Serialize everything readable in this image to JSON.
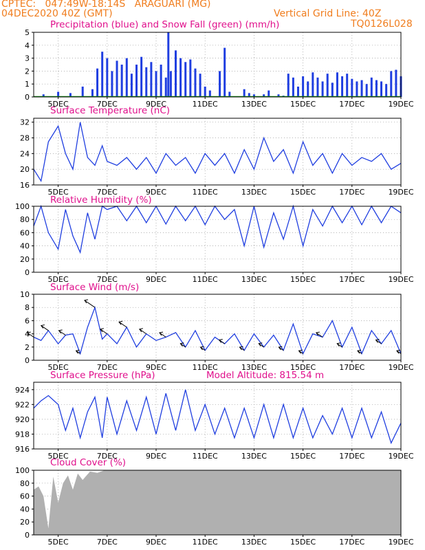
{
  "header": {
    "line1_left": "CPTEC:   047:49W-18:14S   ARAGUARI (MG)",
    "line2_left": "04DEC2020 40Z (GMT)",
    "line2_right": "Vertical Grid Line: 40Z",
    "line3_right": "TQ0126L028"
  },
  "colors": {
    "header": "#f07d1e",
    "title": "#e0108c",
    "series": "#1f3ee0",
    "snow": "#1aa01a",
    "cloud": "#b0b0b0"
  },
  "x_axis": {
    "tick_labels": [
      "5DEC",
      "7DEC",
      "9DEC",
      "11DEC",
      "13DEC",
      "15DEC",
      "17DEC",
      "19DEC"
    ],
    "x_range_days": [
      4.0,
      19.0
    ]
  },
  "panels": {
    "precip": {
      "title": "Precipitation (blue) and Snow Fall (green) (mm/h)"
    },
    "temp": {
      "title": "Surface Temperature (nC)"
    },
    "rh": {
      "title": "Relative Humidity (%)"
    },
    "wind": {
      "title": "Surface Wind (m/s)"
    },
    "press": {
      "title": "Surface Pressure (hPa)",
      "subtitle": "Model Altitude: 815.54 m"
    },
    "cloud": {
      "title": "Cloud Cover (%)"
    }
  },
  "chart_data": [
    {
      "type": "bar",
      "name": "precip",
      "ylim": [
        0,
        5
      ],
      "yticks": [
        0,
        1,
        2,
        3,
        4,
        5
      ],
      "x": [
        4.4,
        5.0,
        5.5,
        6.0,
        6.4,
        6.6,
        6.8,
        7.0,
        7.2,
        7.4,
        7.6,
        7.8,
        8.0,
        8.2,
        8.4,
        8.6,
        8.8,
        9.0,
        9.2,
        9.4,
        9.5,
        9.6,
        9.8,
        10.0,
        10.2,
        10.4,
        10.6,
        10.8,
        11.0,
        11.2,
        11.6,
        11.8,
        12.0,
        12.6,
        12.8,
        13.0,
        13.4,
        13.6,
        14.0,
        14.2,
        14.4,
        14.6,
        14.8,
        15.0,
        15.2,
        15.4,
        15.6,
        15.8,
        16.0,
        16.2,
        16.4,
        16.6,
        16.8,
        17.0,
        17.2,
        17.4,
        17.6,
        17.8,
        18.0,
        18.2,
        18.4,
        18.6,
        18.8,
        19.0
      ],
      "values": [
        0.2,
        0.4,
        0.3,
        0.8,
        0.6,
        2.2,
        3.5,
        3.0,
        2.0,
        2.8,
        2.5,
        3.0,
        1.8,
        2.5,
        3.1,
        2.3,
        2.7,
        2.0,
        2.5,
        1.5,
        5.0,
        2.0,
        3.6,
        3.0,
        2.7,
        2.9,
        2.2,
        1.8,
        0.8,
        0.5,
        2.0,
        3.8,
        0.4,
        0.6,
        0.3,
        0.2,
        0.2,
        0.5,
        0.2,
        0.1,
        1.8,
        1.5,
        0.8,
        1.6,
        1.2,
        1.9,
        1.5,
        1.2,
        1.8,
        1.1,
        1.9,
        1.6,
        1.8,
        1.4,
        1.2,
        1.3,
        1.0,
        1.5,
        1.3,
        1.2,
        1.0,
        2.0,
        2.1,
        1.6
      ]
    },
    {
      "type": "line",
      "name": "temp",
      "ylim": [
        16,
        33
      ],
      "yticks": [
        16,
        20,
        24,
        28,
        32
      ],
      "x": [
        4.0,
        4.3,
        4.6,
        5.0,
        5.3,
        5.6,
        5.9,
        6.2,
        6.5,
        6.8,
        7.0,
        7.4,
        7.8,
        8.2,
        8.6,
        9.0,
        9.4,
        9.8,
        10.2,
        10.6,
        11.0,
        11.4,
        11.8,
        12.2,
        12.6,
        13.0,
        13.4,
        13.8,
        14.2,
        14.6,
        15.0,
        15.4,
        15.8,
        16.2,
        16.6,
        17.0,
        17.4,
        17.8,
        18.2,
        18.6,
        19.0
      ],
      "values": [
        20,
        17,
        27,
        31,
        24,
        20,
        32,
        23,
        21,
        26,
        22,
        21,
        23,
        20,
        23,
        19,
        24,
        21,
        23,
        19,
        24,
        21,
        24,
        19,
        25,
        20,
        28,
        22,
        25,
        19,
        27,
        21,
        24,
        19,
        24,
        21,
        23,
        22,
        24,
        20,
        21.5
      ]
    },
    {
      "type": "line",
      "name": "rh",
      "ylim": [
        0,
        100
      ],
      "yticks": [
        0,
        20,
        40,
        60,
        80,
        100
      ],
      "x": [
        4.0,
        4.3,
        4.6,
        5.0,
        5.3,
        5.6,
        5.9,
        6.2,
        6.5,
        6.8,
        7.0,
        7.4,
        7.8,
        8.2,
        8.6,
        9.0,
        9.4,
        9.8,
        10.2,
        10.6,
        11.0,
        11.4,
        11.8,
        12.2,
        12.6,
        13.0,
        13.4,
        13.8,
        14.2,
        14.6,
        15.0,
        15.4,
        15.8,
        16.2,
        16.6,
        17.0,
        17.4,
        17.8,
        18.2,
        18.6,
        19.0
      ],
      "values": [
        70,
        100,
        60,
        35,
        95,
        55,
        30,
        90,
        50,
        100,
        95,
        100,
        78,
        100,
        75,
        100,
        73,
        100,
        78,
        100,
        72,
        100,
        80,
        95,
        40,
        100,
        38,
        90,
        50,
        100,
        40,
        95,
        70,
        100,
        75,
        100,
        72,
        100,
        75,
        100,
        90
      ]
    },
    {
      "type": "line",
      "name": "wind_speed",
      "ylim": [
        0,
        10
      ],
      "yticks": [
        0,
        2,
        4,
        6,
        8,
        10
      ],
      "x": [
        4.0,
        4.3,
        4.6,
        5.0,
        5.3,
        5.6,
        5.9,
        6.2,
        6.5,
        6.8,
        7.0,
        7.4,
        7.8,
        8.2,
        8.6,
        9.0,
        9.4,
        9.8,
        10.2,
        10.6,
        11.0,
        11.4,
        11.8,
        12.2,
        12.6,
        13.0,
        13.4,
        13.8,
        14.2,
        14.6,
        15.0,
        15.4,
        15.8,
        16.2,
        16.6,
        17.0,
        17.4,
        17.8,
        18.2,
        18.6,
        19.0
      ],
      "values": [
        3.5,
        3.0,
        4.5,
        2.5,
        3.8,
        4.0,
        1.0,
        5.0,
        8.0,
        3.2,
        4.0,
        2.5,
        5.0,
        2.0,
        4.0,
        3.0,
        3.5,
        4.2,
        2.0,
        4.5,
        1.5,
        3.5,
        2.5,
        4.0,
        1.5,
        4.0,
        2.0,
        3.8,
        1.5,
        5.5,
        1.0,
        4.0,
        3.5,
        6.0,
        2.0,
        5.0,
        1.0,
        4.5,
        2.5,
        4.5,
        1.0
      ]
    },
    {
      "type": "line",
      "name": "pressure",
      "ylim": [
        916,
        925
      ],
      "yticks": [
        916,
        918,
        920,
        922,
        924
      ],
      "x": [
        4.0,
        4.3,
        4.6,
        5.0,
        5.3,
        5.6,
        5.9,
        6.2,
        6.5,
        6.8,
        7.0,
        7.4,
        7.8,
        8.2,
        8.6,
        9.0,
        9.4,
        9.8,
        10.2,
        10.6,
        11.0,
        11.4,
        11.8,
        12.2,
        12.6,
        13.0,
        13.4,
        13.8,
        14.2,
        14.6,
        15.0,
        15.4,
        15.8,
        16.2,
        16.6,
        17.0,
        17.4,
        17.8,
        18.2,
        18.6,
        19.0
      ],
      "values": [
        921.5,
        922.5,
        923.2,
        922,
        918.5,
        921.5,
        917.5,
        921,
        923,
        917.5,
        923,
        918,
        922.5,
        918.5,
        923,
        918,
        923.5,
        918.5,
        924,
        918.5,
        922,
        918,
        921.5,
        917.5,
        921.5,
        917.5,
        922,
        917.5,
        922,
        917.5,
        921.5,
        917.5,
        920.5,
        918,
        921.5,
        917.5,
        921.5,
        917.5,
        921,
        916.8,
        919.5
      ]
    },
    {
      "type": "area",
      "name": "cloud",
      "ylim": [
        0,
        100
      ],
      "yticks": [
        0,
        20,
        40,
        60,
        80,
        100
      ],
      "x": [
        4.0,
        4.2,
        4.4,
        4.6,
        4.8,
        5.0,
        5.2,
        5.4,
        5.6,
        5.8,
        6.0,
        6.3,
        6.6,
        6.9,
        7.2,
        7.6,
        8.0,
        9.0,
        10.0,
        11.0,
        12.0,
        13.0,
        14.0,
        15.0,
        16.0,
        17.0,
        18.0,
        19.0
      ],
      "values": [
        70,
        75,
        60,
        10,
        90,
        50,
        80,
        92,
        70,
        95,
        85,
        98,
        96,
        100,
        100,
        100,
        100,
        100,
        100,
        100,
        100,
        100,
        100,
        100,
        100,
        100,
        100,
        100
      ]
    }
  ]
}
